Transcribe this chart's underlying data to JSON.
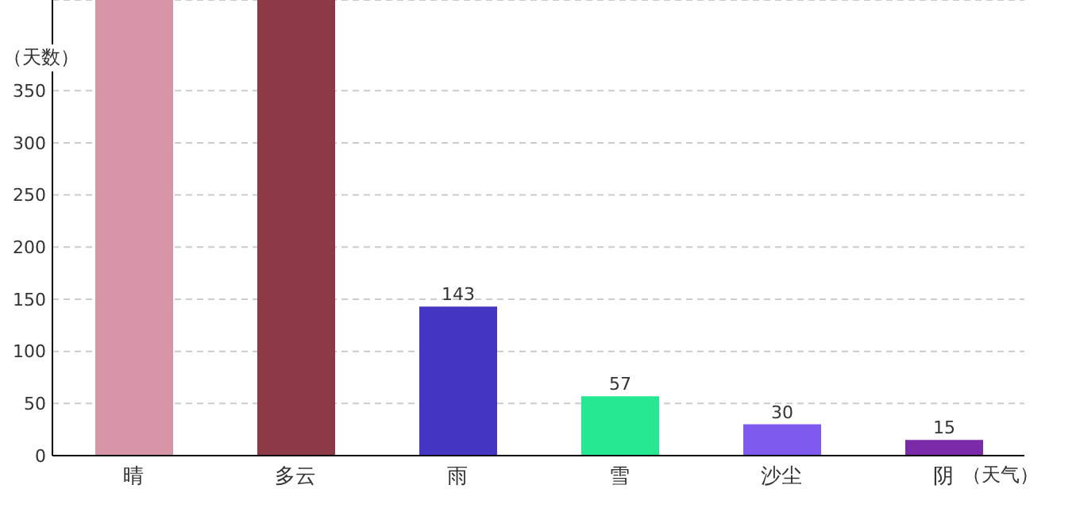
{
  "chart_data": {
    "type": "bar",
    "xlabel": "（天气）",
    "ylabel": "（天数）",
    "categories": [
      "晴",
      "多云",
      "雨",
      "雪",
      "沙尘",
      "阴"
    ],
    "values": [
      437,
      437,
      143,
      57,
      30,
      15
    ],
    "colors": [
      "#d696a8",
      "#8b3a46",
      "#4636c4",
      "#26e890",
      "#7f5aee",
      "#7b2aa8"
    ],
    "value_labels": [
      null,
      null,
      "143",
      "57",
      "30",
      "15"
    ],
    "ylim": [
      0,
      437
    ],
    "yticks": [
      0,
      50,
      100,
      150,
      200,
      250,
      300,
      350
    ],
    "grid": "y"
  }
}
